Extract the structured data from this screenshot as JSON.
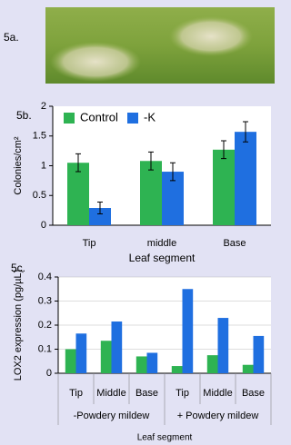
{
  "panels": [
    {
      "label": "5a."
    }
  ],
  "chart_data": [
    {
      "type": "bar",
      "panel_label": "5b.",
      "y_label": "Colonies/cm²",
      "x_label": "Leaf segment",
      "categories": [
        "Tip",
        "middle",
        "Base"
      ],
      "series": [
        {
          "name": "Control",
          "color": "#2eb352",
          "values": [
            1.05,
            1.08,
            1.27
          ],
          "errors": [
            0.15,
            0.15,
            0.15
          ]
        },
        {
          "name": "-K",
          "color": "#1f6fe0",
          "values": [
            0.29,
            0.9,
            1.57
          ],
          "errors": [
            0.1,
            0.15,
            0.17
          ]
        }
      ],
      "ylim": [
        0,
        2
      ],
      "yticks": [
        0,
        0.5,
        1,
        1.5,
        2
      ],
      "grid": false,
      "legend": "top"
    },
    {
      "type": "bar",
      "panel_label": "5c.",
      "y_label": "LOX2 expression (pg/µL)",
      "x_label": "Leaf segment",
      "groups": [
        {
          "name": "-Powdery mildew",
          "categories": [
            "Tip",
            "Middle",
            "Base"
          ]
        },
        {
          "name": "+ Powdery mildew",
          "categories": [
            "Tip",
            "Middle",
            "Base"
          ]
        }
      ],
      "series": [
        {
          "color": "#2eb352",
          "values": [
            0.1,
            0.135,
            0.07,
            0.03,
            0.075,
            0.035
          ]
        },
        {
          "color": "#1f6fe0",
          "values": [
            0.165,
            0.215,
            0.085,
            0.35,
            0.23,
            0.155
          ]
        }
      ],
      "ylim": [
        0,
        0.4
      ],
      "yticks": [
        0,
        0.1,
        0.2,
        0.3,
        0.4
      ],
      "grid": true
    }
  ]
}
